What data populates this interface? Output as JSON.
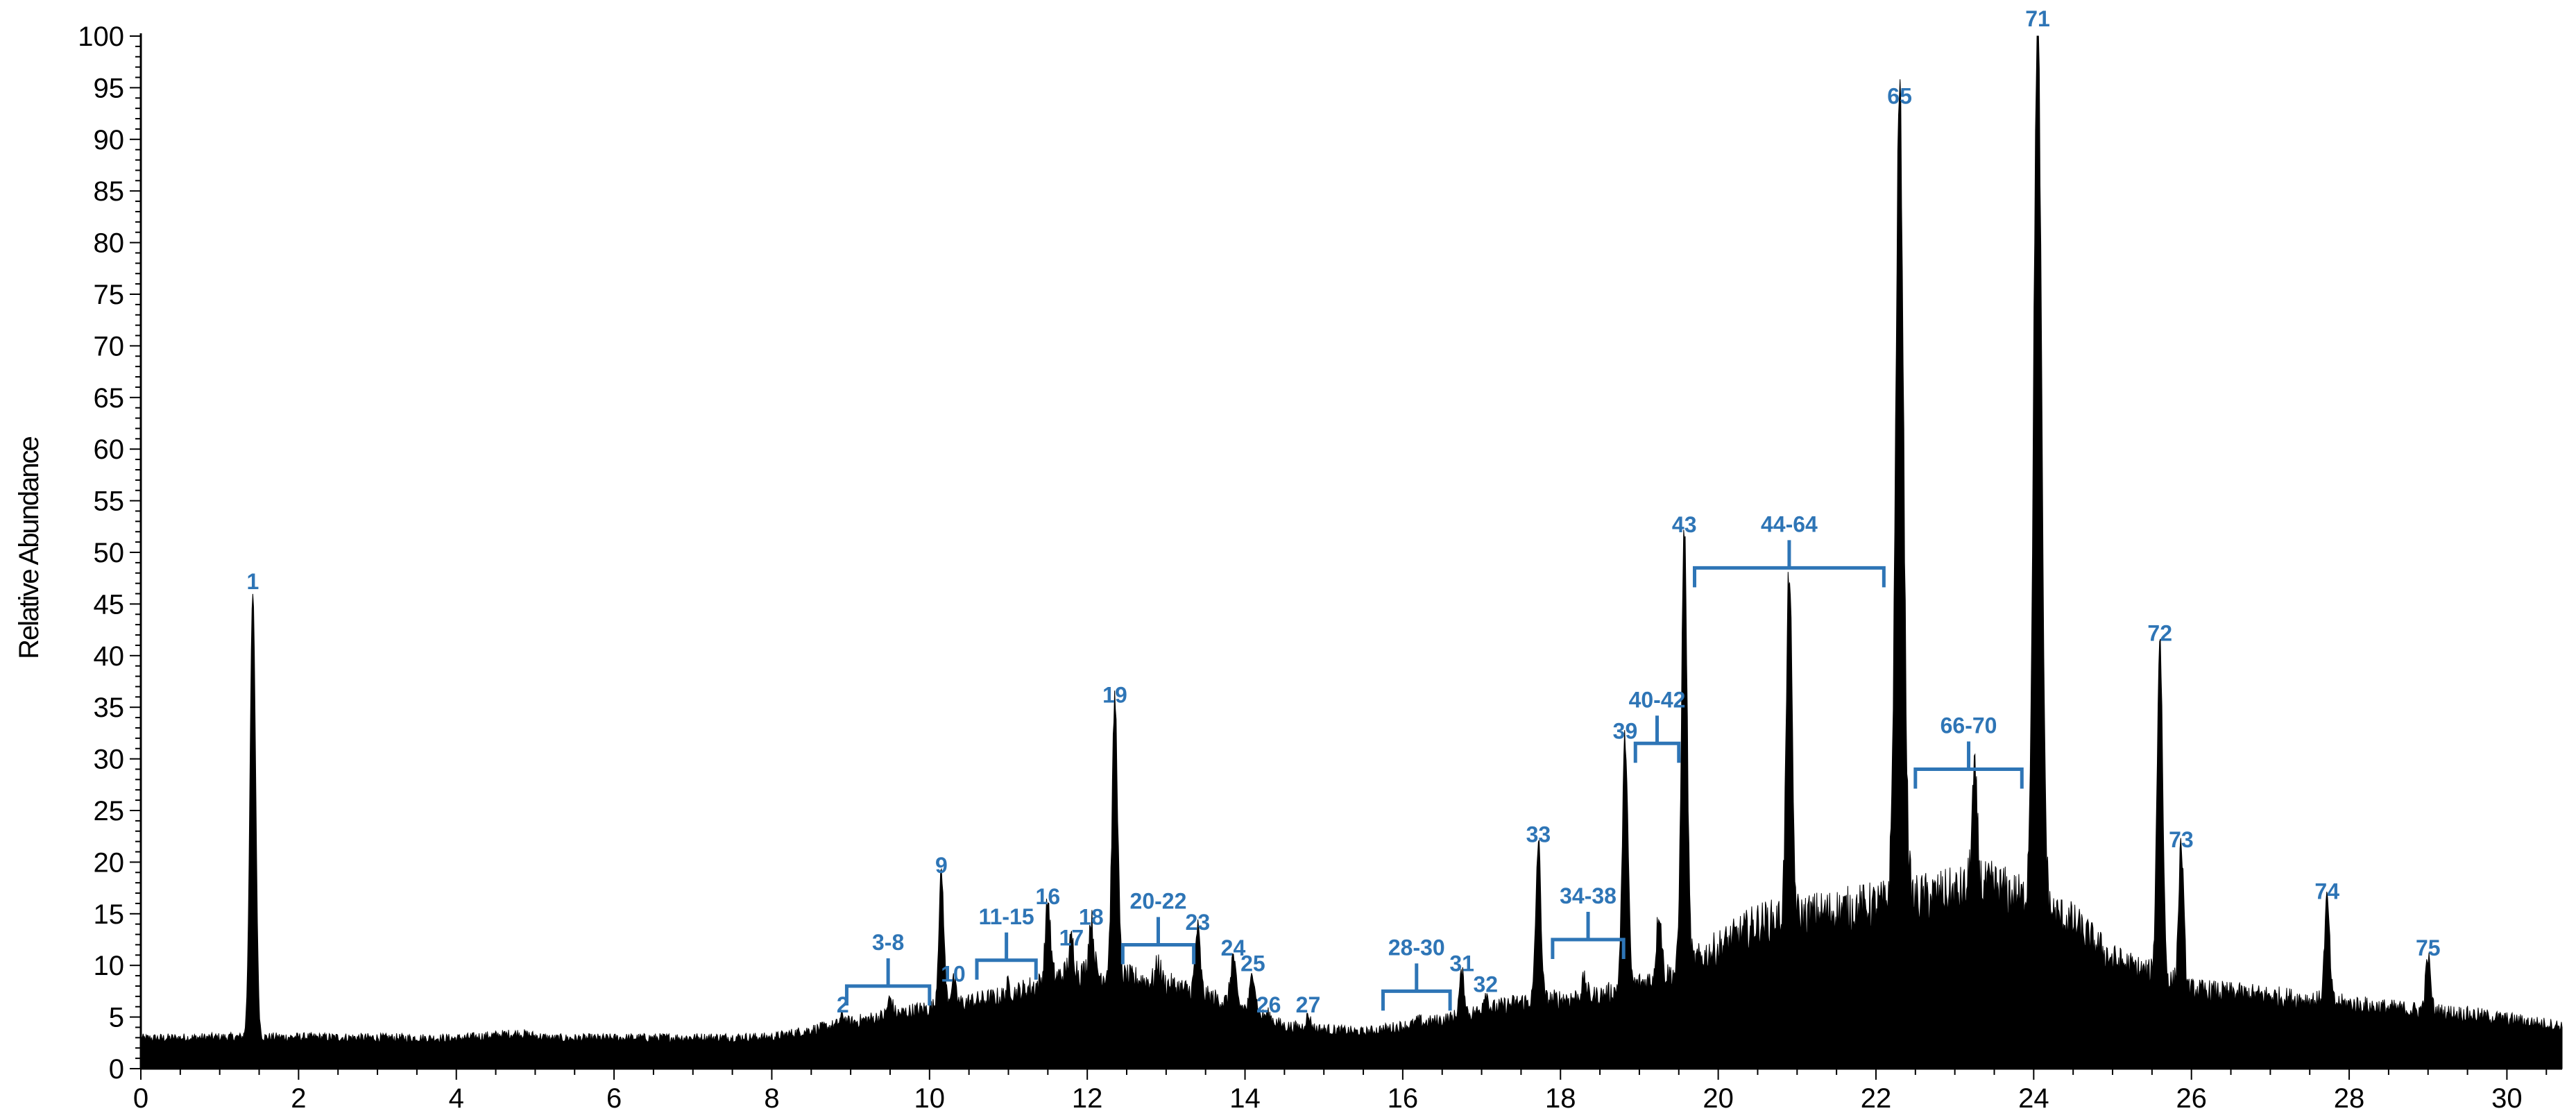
{
  "chart_data": {
    "type": "line",
    "title": "",
    "xlabel": "",
    "ylabel": "Relative Abundance",
    "xlim": [
      0,
      30.7
    ],
    "ylim": [
      0,
      100
    ],
    "x_ticks": [
      0,
      2,
      4,
      6,
      8,
      10,
      12,
      14,
      16,
      18,
      20,
      22,
      24,
      26,
      28,
      30
    ],
    "y_ticks": [
      0,
      5,
      10,
      15,
      20,
      25,
      30,
      35,
      40,
      45,
      50,
      55,
      60,
      65,
      70,
      75,
      80,
      85,
      90,
      95,
      100
    ],
    "grid": false,
    "colors": {
      "trace": "#000000",
      "annotation": "#2E75B6"
    },
    "baseline": [
      [
        0,
        2.5
      ],
      [
        1.2,
        2.6
      ],
      [
        2.0,
        2.6
      ],
      [
        4.0,
        2.5
      ],
      [
        4.8,
        2.9
      ],
      [
        5.2,
        2.5
      ],
      [
        8.0,
        2.6
      ],
      [
        9.0,
        3.8
      ],
      [
        10.0,
        5.0
      ],
      [
        11.0,
        6.0
      ],
      [
        11.8,
        8.0
      ],
      [
        12.5,
        7.5
      ],
      [
        13.0,
        7.0
      ],
      [
        14.0,
        5.0
      ],
      [
        14.5,
        3.5
      ],
      [
        15.5,
        3.0
      ],
      [
        16.5,
        4.0
      ],
      [
        17.5,
        5.5
      ],
      [
        18.5,
        6.0
      ],
      [
        19.5,
        8.0
      ],
      [
        20.5,
        12.0
      ],
      [
        21.5,
        13.0
      ],
      [
        22.5,
        14.0
      ],
      [
        23.5,
        15.0
      ],
      [
        24.5,
        12.0
      ],
      [
        25.0,
        9.0
      ],
      [
        26.0,
        6.5
      ],
      [
        27.0,
        6.0
      ],
      [
        28.5,
        5.0
      ],
      [
        29.5,
        4.5
      ],
      [
        30.7,
        3.5
      ]
    ],
    "peaks": [
      {
        "label": "1",
        "x": 1.42,
        "y": 45.5
      },
      {
        "label": "2",
        "x": 8.9,
        "y": 4.5
      },
      {
        "label": "3-8",
        "x": 9.5,
        "y": 6.0
      },
      {
        "label": "9",
        "x": 10.15,
        "y": 18.0
      },
      {
        "label": "10",
        "x": 10.3,
        "y": 7.5
      },
      {
        "label": "11-15",
        "x": 11.0,
        "y": 7.0
      },
      {
        "label": "16",
        "x": 11.5,
        "y": 15.0
      },
      {
        "label": "17",
        "x": 11.8,
        "y": 11.0
      },
      {
        "label": "18",
        "x": 12.05,
        "y": 13.0
      },
      {
        "label": "19",
        "x": 12.35,
        "y": 34.5
      },
      {
        "label": "20-22",
        "x": 12.9,
        "y": 9.0
      },
      {
        "label": "23",
        "x": 13.4,
        "y": 12.5
      },
      {
        "label": "24",
        "x": 13.85,
        "y": 10.0
      },
      {
        "label": "25",
        "x": 14.1,
        "y": 8.5
      },
      {
        "label": "26",
        "x": 14.3,
        "y": 4.5
      },
      {
        "label": "27",
        "x": 14.8,
        "y": 4.5
      },
      {
        "label": "28-30",
        "x": 16.2,
        "y": 4.0
      },
      {
        "label": "31",
        "x": 16.75,
        "y": 8.5
      },
      {
        "label": "32",
        "x": 17.05,
        "y": 6.5
      },
      {
        "label": "33",
        "x": 17.72,
        "y": 21.0
      },
      {
        "label": "34-38",
        "x": 18.3,
        "y": 7.5
      },
      {
        "label": "39",
        "x": 18.82,
        "y": 31.0
      },
      {
        "label": "40-42",
        "x": 19.25,
        "y": 14.0
      },
      {
        "label": "43",
        "x": 19.57,
        "y": 51.0
      },
      {
        "label": "44-64",
        "x": 20.9,
        "y": 46.5
      },
      {
        "label": "65",
        "x": 22.3,
        "y": 92.5
      },
      {
        "label": "66-70",
        "x": 23.25,
        "y": 25.5
      },
      {
        "label": "71",
        "x": 24.05,
        "y": 100.0
      },
      {
        "label": "72",
        "x": 25.6,
        "y": 40.5
      },
      {
        "label": "73",
        "x": 25.87,
        "y": 20.5
      },
      {
        "label": "74",
        "x": 27.72,
        "y": 15.5
      },
      {
        "label": "75",
        "x": 29.0,
        "y": 10.0
      }
    ],
    "brackets": [
      {
        "label": "3-8",
        "x_start": 8.95,
        "x_end": 10.0,
        "y": 8.0
      },
      {
        "label": "11-15",
        "x_start": 10.6,
        "x_end": 11.35,
        "y": 10.5
      },
      {
        "label": "20-22",
        "x_start": 12.45,
        "x_end": 13.35,
        "y": 12.0
      },
      {
        "label": "28-30",
        "x_start": 15.75,
        "x_end": 16.6,
        "y": 7.5
      },
      {
        "label": "34-38",
        "x_start": 17.9,
        "x_end": 18.8,
        "y": 12.5
      },
      {
        "label": "40-42",
        "x_start": 18.95,
        "x_end": 19.5,
        "y": 31.5
      },
      {
        "label": "44-64",
        "x_start": 19.7,
        "x_end": 22.1,
        "y": 48.5
      },
      {
        "label": "66-70",
        "x_start": 22.5,
        "x_end": 23.85,
        "y": 29.0
      }
    ]
  }
}
